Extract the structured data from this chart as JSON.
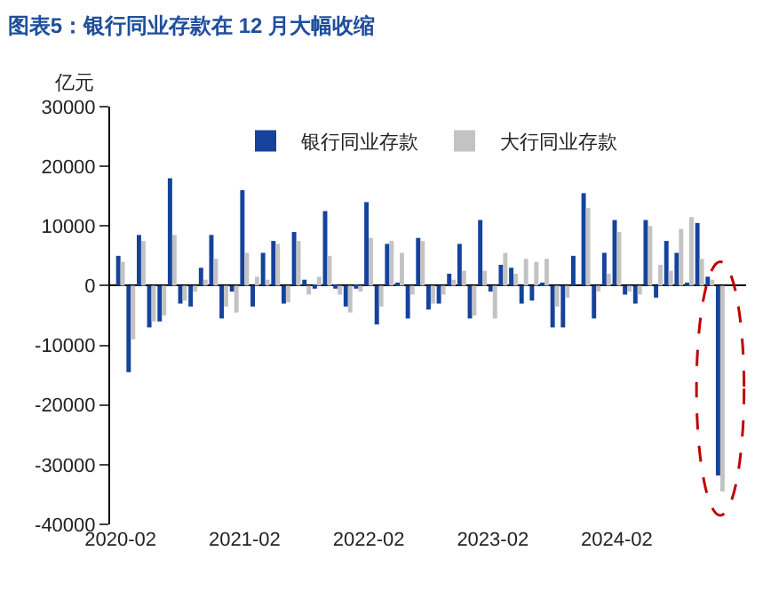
{
  "chart_data": {
    "type": "bar",
    "title": "图表5：银行同业存款在 12 月大幅收缩",
    "ylabel": "亿元",
    "categories": [
      "2020-02",
      null,
      null,
      null,
      null,
      null,
      null,
      null,
      null,
      null,
      null,
      null,
      "2021-02",
      null,
      null,
      null,
      null,
      null,
      null,
      null,
      null,
      null,
      null,
      null,
      "2022-02",
      null,
      null,
      null,
      null,
      null,
      null,
      null,
      null,
      null,
      null,
      null,
      "2023-02",
      null,
      null,
      null,
      null,
      null,
      null,
      null,
      null,
      null,
      null,
      null,
      "2024-02",
      null,
      null,
      null,
      null,
      null,
      null,
      null,
      null,
      null,
      null
    ],
    "series": [
      {
        "name": "银行同业存款",
        "color": "#15439c",
        "values": [
          5000,
          -14500,
          8500,
          -7000,
          -6000,
          18000,
          -3000,
          -3500,
          3000,
          8500,
          -5500,
          -1000,
          16000,
          -3500,
          5500,
          7500,
          -3000,
          9000,
          1000,
          -500,
          12500,
          -500,
          -3500,
          -500,
          14000,
          -6500,
          7000,
          500,
          -5500,
          8000,
          -4000,
          -3000,
          2000,
          7000,
          -5500,
          11000,
          -1000,
          3500,
          3000,
          -3000,
          -2500,
          500,
          -7000,
          -7000,
          5000,
          15500,
          -5500,
          5500,
          11000,
          -1500,
          -3000,
          11000,
          -2000,
          7500,
          5500,
          500,
          10500,
          1500,
          -31800
        ]
      },
      {
        "name": "大行同业存款",
        "color": "#c3c3c3",
        "values": [
          4000,
          -9000,
          7500,
          -6000,
          -5000,
          8500,
          -2500,
          -1000,
          1000,
          4500,
          -3500,
          -4500,
          5500,
          1500,
          1000,
          7000,
          -2800,
          7500,
          -1500,
          1500,
          5000,
          -1500,
          -4500,
          -1000,
          8000,
          -3500,
          7500,
          5500,
          -1500,
          7500,
          -3000,
          -1500,
          1000,
          2500,
          -5000,
          2500,
          -5500,
          5500,
          2000,
          4500,
          4000,
          4500,
          -3500,
          -2000,
          0,
          13000,
          -1000,
          2000,
          9000,
          -1000,
          -1500,
          10000,
          3500,
          2500,
          9500,
          11500,
          4500,
          1000,
          -34500
        ]
      }
    ],
    "ylim": [
      -40000,
      30000
    ],
    "yticks": [
      -40000,
      -30000,
      -20000,
      -10000,
      0,
      10000,
      20000,
      30000
    ],
    "legend": "top"
  }
}
